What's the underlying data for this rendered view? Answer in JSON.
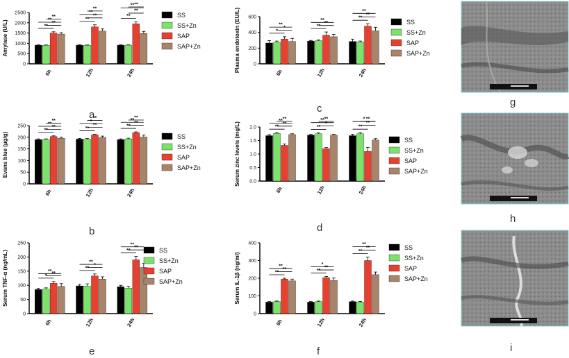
{
  "figure": {
    "panel_letters": [
      "a",
      "b",
      "c",
      "d",
      "e",
      "f",
      "g",
      "h",
      "i"
    ],
    "micrograph_labels": [
      "g",
      "h",
      "i"
    ]
  },
  "colors": {
    "SS": "#000000",
    "SS+Zn": "#7be36a",
    "SAP": "#e8402f",
    "SAP+Zn": "#a8846a"
  },
  "chart_data": [
    {
      "panel": "a",
      "type": "bar",
      "ylabel": "Amylase (U/L)",
      "ylim": [
        0,
        2500
      ],
      "yticks": [
        0,
        500,
        1000,
        1500,
        2000,
        2500
      ],
      "categories": [
        "6h",
        "12h",
        "24h"
      ],
      "legend": [
        "SS",
        "SS+Zn",
        "SAP",
        "SAP+Zn"
      ],
      "series": [
        {
          "name": "SS",
          "values": [
            910,
            910,
            910
          ],
          "errors": [
            15,
            15,
            15
          ]
        },
        {
          "name": "SS+Zn",
          "values": [
            905,
            905,
            910
          ],
          "errors": [
            15,
            15,
            15
          ]
        },
        {
          "name": "SAP",
          "values": [
            1500,
            1800,
            1950
          ],
          "errors": [
            60,
            100,
            90
          ]
        },
        {
          "name": "SAP+Zn",
          "values": [
            1450,
            1600,
            1480
          ],
          "errors": [
            70,
            100,
            100
          ]
        }
      ],
      "significance": [
        "**",
        "**",
        "**",
        "**",
        "**",
        "**",
        "**",
        "**",
        "**",
        "**",
        "**",
        "**"
      ]
    },
    {
      "panel": "b",
      "type": "bar",
      "ylabel": "Evans blue (µg/g)",
      "ylim": [
        0,
        250
      ],
      "yticks": [
        0,
        50,
        100,
        150,
        200,
        250
      ],
      "categories": [
        "6h",
        "12h",
        "24h"
      ],
      "legend": [
        "SS",
        "SS+Zn",
        "SAP",
        "SAP+Zn"
      ],
      "series": [
        {
          "name": "SS",
          "values": [
            190,
            192,
            190
          ],
          "errors": [
            3,
            3,
            3
          ]
        },
        {
          "name": "SS+Zn",
          "values": [
            190,
            192,
            193
          ],
          "errors": [
            3,
            3,
            3
          ]
        },
        {
          "name": "SAP",
          "values": [
            203,
            210,
            220
          ],
          "errors": [
            3,
            3,
            3
          ]
        },
        {
          "name": "SAP+Zn",
          "values": [
            196,
            199,
            201
          ],
          "errors": [
            4,
            6,
            8
          ]
        }
      ],
      "significance": [
        "**",
        "**",
        "**",
        "**",
        "**",
        "**",
        "*",
        "**",
        "**",
        "**",
        "**",
        "**"
      ]
    },
    {
      "panel": "c",
      "type": "bar",
      "ylabel": "Plasma endotoxin (EU/L)",
      "ylim": [
        0,
        600
      ],
      "yticks": [
        0,
        200,
        400,
        600
      ],
      "categories": [
        "6h",
        "12h",
        "24h"
      ],
      "legend": [
        "SS",
        "SS+Zn",
        "SAP",
        "SAP+Zn"
      ],
      "series": [
        {
          "name": "SS",
          "values": [
            265,
            290,
            285
          ],
          "errors": [
            30,
            8,
            30
          ]
        },
        {
          "name": "SS+Zn",
          "values": [
            275,
            295,
            280
          ],
          "errors": [
            15,
            8,
            10
          ]
        },
        {
          "name": "SAP",
          "values": [
            315,
            365,
            480
          ],
          "errors": [
            30,
            40,
            30
          ]
        },
        {
          "name": "SAP+Zn",
          "values": [
            285,
            345,
            420
          ],
          "errors": [
            40,
            30,
            45
          ]
        }
      ],
      "significance": [
        "*",
        "*",
        "**",
        "**",
        "**",
        "**",
        "**",
        "**",
        "**"
      ]
    },
    {
      "panel": "d",
      "type": "bar",
      "ylabel": "Serum zinc levels (mg/L)",
      "ylim": [
        0,
        2.0
      ],
      "yticks": [
        0.0,
        0.5,
        1.0,
        1.5,
        2.0
      ],
      "categories": [
        "6h",
        "12h",
        "24h"
      ],
      "legend": [
        "SS",
        "SS+Zn",
        "SAP",
        "SAP+Zn"
      ],
      "series": [
        {
          "name": "SS",
          "values": [
            1.68,
            1.7,
            1.68
          ],
          "errors": [
            0.04,
            0.03,
            0.05
          ]
        },
        {
          "name": "SS+Zn",
          "values": [
            1.76,
            1.75,
            1.75
          ],
          "errors": [
            0.03,
            0.03,
            0.04
          ]
        },
        {
          "name": "SAP",
          "values": [
            1.32,
            1.2,
            1.1
          ],
          "errors": [
            0.05,
            0.04,
            0.14
          ]
        },
        {
          "name": "SAP+Zn",
          "values": [
            1.72,
            1.7,
            1.52
          ],
          "errors": [
            0.03,
            0.03,
            0.05
          ]
        }
      ],
      "significance": [
        "**",
        "**",
        "**",
        "**",
        "**",
        "*",
        "**",
        "**",
        "**",
        "**",
        "*",
        "**"
      ]
    },
    {
      "panel": "e",
      "type": "bar",
      "ylabel": "Serum TNF-α (ng/mL)",
      "ylim": [
        0,
        250
      ],
      "yticks": [
        0,
        50,
        100,
        150,
        200,
        250
      ],
      "categories": [
        "6h",
        "12h",
        "24h"
      ],
      "legend": [
        "SS",
        "SS+Zn",
        "SAP",
        "SAP+Zn"
      ],
      "series": [
        {
          "name": "SS",
          "values": [
            85,
            98,
            95
          ],
          "errors": [
            4,
            5,
            5
          ]
        },
        {
          "name": "SS+Zn",
          "values": [
            87,
            97,
            90
          ],
          "errors": [
            4,
            8,
            6
          ]
        },
        {
          "name": "SAP",
          "values": [
            107,
            133,
            190
          ],
          "errors": [
            6,
            7,
            12
          ]
        },
        {
          "name": "SAP+Zn",
          "values": [
            96,
            122,
            163
          ],
          "errors": [
            10,
            8,
            14
          ]
        }
      ],
      "significance": [
        "*",
        "**",
        "**",
        "**",
        "*",
        "**",
        "**",
        "**",
        "**",
        "**"
      ]
    },
    {
      "panel": "f",
      "type": "bar",
      "ylabel": "Serum IL-1β (ng/ml)",
      "ylim": [
        0,
        400
      ],
      "yticks": [
        0,
        100,
        200,
        300,
        400
      ],
      "categories": [
        "6h",
        "12h",
        "24h"
      ],
      "legend": [
        "SS",
        "SS+Zn",
        "SAP",
        "SAP+Zn"
      ],
      "series": [
        {
          "name": "SS",
          "values": [
            65,
            65,
            68
          ],
          "errors": [
            3,
            3,
            3
          ]
        },
        {
          "name": "SS+Zn",
          "values": [
            68,
            68,
            66
          ],
          "errors": [
            3,
            3,
            3
          ]
        },
        {
          "name": "SAP",
          "values": [
            195,
            203,
            300
          ],
          "errors": [
            5,
            7,
            20
          ]
        },
        {
          "name": "SAP+Zn",
          "values": [
            185,
            188,
            220
          ],
          "errors": [
            10,
            13,
            15
          ]
        }
      ],
      "significance": [
        "**",
        "**",
        "**",
        "**",
        "**",
        "*",
        "**",
        "**",
        "**",
        "**"
      ]
    }
  ]
}
